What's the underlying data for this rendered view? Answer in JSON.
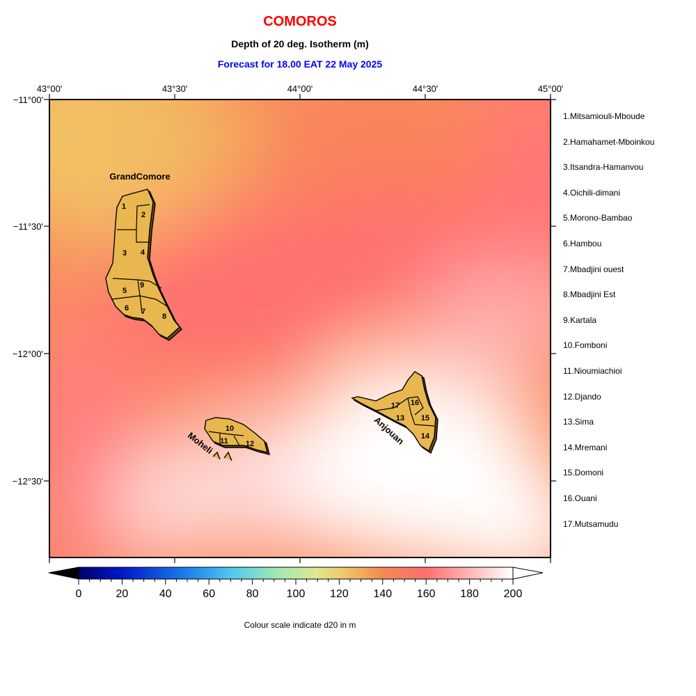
{
  "title": "COMOROS",
  "subtitle": "Depth of 20 deg. Isotherm (m)",
  "forecast": "Forecast for  18.00 EAT 22 May 2025",
  "axes": {
    "lon_ticks": [
      "43°00'",
      "43°30'",
      "44°00'",
      "44°30'",
      "45°00'"
    ],
    "lat_ticks": [
      "−11°00'",
      "−11°30'",
      "−12°00'",
      "−12°30'"
    ]
  },
  "islands": {
    "grand_comore": "GrandComore",
    "moheli": "Moheli",
    "anjouan": "Anjouan"
  },
  "districts": [
    {
      "num": "1",
      "name": "1.Mitsamiouli-Mboude"
    },
    {
      "num": "2",
      "name": "2.Hamahamet-Mboinkou"
    },
    {
      "num": "3",
      "name": "3.Itsandra-Hamanvou"
    },
    {
      "num": "4",
      "name": "4.Oichili-dimani"
    },
    {
      "num": "5",
      "name": "5.Morono-Bambao"
    },
    {
      "num": "6",
      "name": "6.Hambou"
    },
    {
      "num": "7",
      "name": "7.Mbadjini ouest"
    },
    {
      "num": "8",
      "name": "8.Mbadjini Est"
    },
    {
      "num": "9",
      "name": "9.Kartala"
    },
    {
      "num": "10",
      "name": "10.Fomboni"
    },
    {
      "num": "11",
      "name": "11.Nioumiachioi"
    },
    {
      "num": "12",
      "name": "12.Djando"
    },
    {
      "num": "13",
      "name": "13.Sima"
    },
    {
      "num": "14",
      "name": "14.Mremani"
    },
    {
      "num": "15",
      "name": "15.Domoni"
    },
    {
      "num": "16",
      "name": "16.Ouani"
    },
    {
      "num": "17",
      "name": "17.Mutsamudu"
    }
  ],
  "colorbar": {
    "ticks": [
      "0",
      "20",
      "40",
      "60",
      "80",
      "100",
      "120",
      "140",
      "160",
      "180",
      "200"
    ],
    "caption": "Colour scale indicate d20 in m"
  },
  "colors": {
    "title": "#ff0000",
    "forecast": "#0000ff",
    "land": "#e8b74f",
    "deep": "#ff6f6f",
    "mid": "#f38a52",
    "shallow": "#f2c163",
    "max": "#ffffff"
  }
}
